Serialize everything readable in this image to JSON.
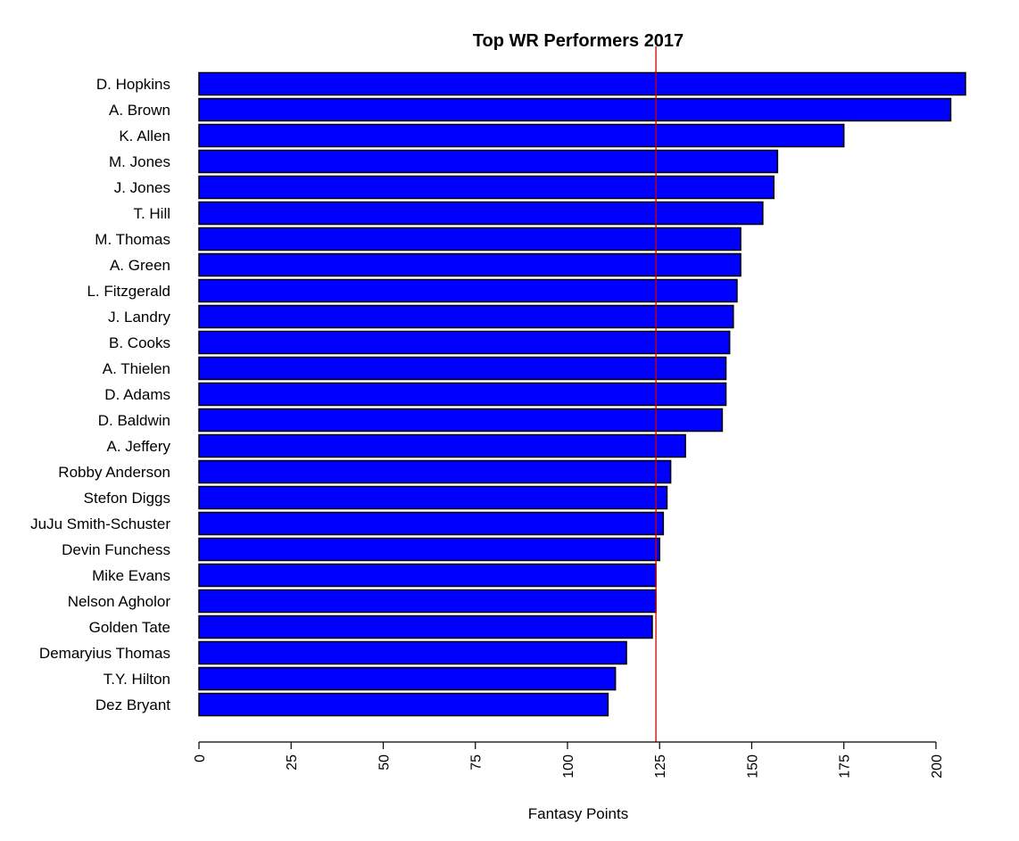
{
  "chart_data": {
    "type": "bar",
    "orientation": "horizontal",
    "title": "Top WR Performers 2017",
    "xlabel": "Fantasy Points",
    "ylabel": "",
    "xlim": [
      0,
      208
    ],
    "x_ticks": [
      0,
      25,
      50,
      75,
      100,
      125,
      150,
      175,
      200
    ],
    "grid": false,
    "legend": "none",
    "bar_color": "#0000ff",
    "bar_border_color": "#000000",
    "reference_line": {
      "orientation": "vertical",
      "value": 124,
      "color": "#cc0000"
    },
    "categories": [
      "D. Hopkins",
      "A. Brown",
      "K. Allen",
      "M. Jones",
      "J. Jones",
      "T. Hill",
      "M. Thomas",
      "A. Green",
      "L. Fitzgerald",
      "J. Landry",
      "B. Cooks",
      "A. Thielen",
      "D. Adams",
      "D. Baldwin",
      "A. Jeffery",
      "Robby Anderson",
      "Stefon Diggs",
      "JuJu Smith-Schuster",
      "Devin Funchess",
      "Mike Evans",
      "Nelson Agholor",
      "Golden Tate",
      "Demaryius Thomas",
      "T.Y. Hilton",
      "Dez Bryant"
    ],
    "values": [
      208,
      204,
      175,
      157,
      156,
      153,
      147,
      147,
      146,
      145,
      144,
      143,
      143,
      142,
      132,
      128,
      127,
      126,
      125,
      124,
      124,
      123,
      116,
      113,
      111
    ]
  }
}
